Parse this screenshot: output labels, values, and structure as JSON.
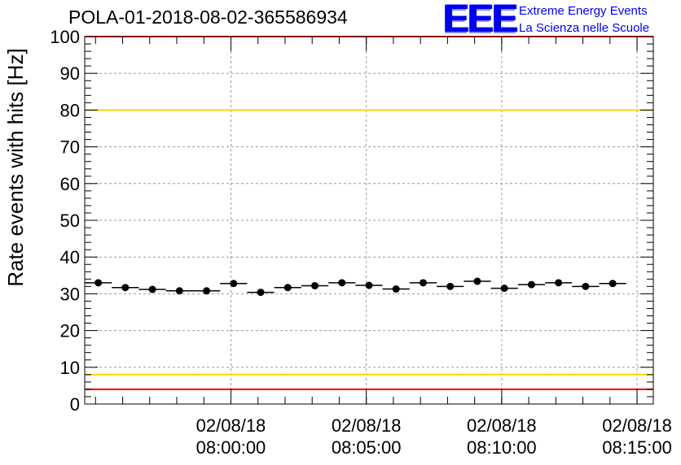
{
  "header": {
    "title": "POLA-01-2018-08-02-365586934",
    "logo_mark": "EEE",
    "logo_line1": "Extreme Energy Events",
    "logo_line2": "La Scienza nelle Scuole"
  },
  "colors": {
    "red_line": "#ff0000",
    "yellow_line": "#ffd700",
    "marker": "#000000",
    "grid": "#999999",
    "logo": "#0000ee"
  },
  "chart_data": {
    "type": "scatter",
    "title": "POLA-01-2018-08-02-365586934",
    "ylabel": "Rate events with hits [Hz]",
    "xlabel": "",
    "ylim": [
      0,
      100
    ],
    "yticks": [
      0,
      10,
      20,
      30,
      40,
      50,
      60,
      70,
      80,
      90,
      100
    ],
    "xlim": [
      "07:54:36",
      "08:15:36"
    ],
    "xticks": [
      {
        "time": "08:00:00",
        "label_date": "02/08/18",
        "label_time": "08:00:00"
      },
      {
        "time": "08:05:00",
        "label_date": "02/08/18",
        "label_time": "08:05:00"
      },
      {
        "time": "08:10:00",
        "label_date": "02/08/18",
        "label_time": "08:10:00"
      },
      {
        "time": "08:15:00",
        "label_date": "02/08/18",
        "label_time": "08:15:00"
      }
    ],
    "grid": true,
    "bin_width_seconds": 60,
    "points": [
      {
        "x": "07:55:06",
        "y": 33.0
      },
      {
        "x": "07:56:06",
        "y": 31.7
      },
      {
        "x": "07:57:06",
        "y": 31.2
      },
      {
        "x": "07:58:06",
        "y": 30.8
      },
      {
        "x": "07:59:06",
        "y": 30.8
      },
      {
        "x": "08:00:06",
        "y": 32.8
      },
      {
        "x": "08:01:06",
        "y": 30.4
      },
      {
        "x": "08:02:06",
        "y": 31.7
      },
      {
        "x": "08:03:06",
        "y": 32.2
      },
      {
        "x": "08:04:06",
        "y": 33.0
      },
      {
        "x": "08:05:06",
        "y": 32.3
      },
      {
        "x": "08:06:06",
        "y": 31.3
      },
      {
        "x": "08:07:06",
        "y": 33.0
      },
      {
        "x": "08:08:06",
        "y": 32.0
      },
      {
        "x": "08:09:06",
        "y": 33.4
      },
      {
        "x": "08:10:06",
        "y": 31.5
      },
      {
        "x": "08:11:06",
        "y": 32.5
      },
      {
        "x": "08:12:06",
        "y": 33.0
      },
      {
        "x": "08:13:06",
        "y": 32.0
      },
      {
        "x": "08:14:06",
        "y": 32.8
      }
    ],
    "reference_lines": [
      {
        "y": 100,
        "color": "red"
      },
      {
        "y": 80,
        "color": "yellow"
      },
      {
        "y": 8,
        "color": "yellow"
      },
      {
        "y": 4,
        "color": "red"
      }
    ]
  }
}
